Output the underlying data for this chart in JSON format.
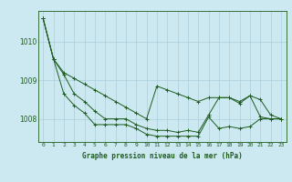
{
  "title": "Graphe pression niveau de la mer (hPa)",
  "background_color": "#cce8f0",
  "grid_color": "#aacfdc",
  "line_color": "#1e5c1e",
  "x_labels": [
    "0",
    "1",
    "2",
    "3",
    "4",
    "5",
    "6",
    "7",
    "8",
    "9",
    "10",
    "11",
    "12",
    "13",
    "14",
    "15",
    "16",
    "17",
    "18",
    "19",
    "20",
    "21",
    "22",
    "23"
  ],
  "ylim": [
    1007.4,
    1010.8
  ],
  "yticks": [
    1008,
    1009,
    1010
  ],
  "series": {
    "line1": [
      1010.6,
      1009.55,
      1009.2,
      1009.05,
      1008.9,
      1008.75,
      1008.6,
      1008.45,
      1008.3,
      1008.15,
      1008.0,
      1008.85,
      1008.75,
      1008.65,
      1008.55,
      1008.45,
      1008.55,
      1008.55,
      1008.55,
      1008.45,
      1008.6,
      1008.5,
      1008.1,
      1008.0
    ],
    "line2": [
      1010.6,
      1009.55,
      1009.15,
      1008.65,
      1008.45,
      1008.2,
      1008.0,
      1008.0,
      1008.0,
      1007.85,
      1007.75,
      1007.7,
      1007.7,
      1007.65,
      1007.7,
      1007.65,
      1008.1,
      1008.55,
      1008.55,
      1008.4,
      1008.6,
      1008.05,
      1008.0,
      1008.0
    ],
    "line3": [
      1010.6,
      1009.55,
      1008.65,
      1008.35,
      1008.15,
      1007.85,
      1007.85,
      1007.85,
      1007.85,
      1007.75,
      1007.6,
      1007.55,
      1007.55,
      1007.55,
      1007.55,
      1007.55,
      1008.05,
      1007.75,
      1007.8,
      1007.75,
      1007.8,
      1008.0,
      1008.0,
      1008.0
    ]
  },
  "figsize": [
    3.2,
    2.0
  ],
  "dpi": 100
}
